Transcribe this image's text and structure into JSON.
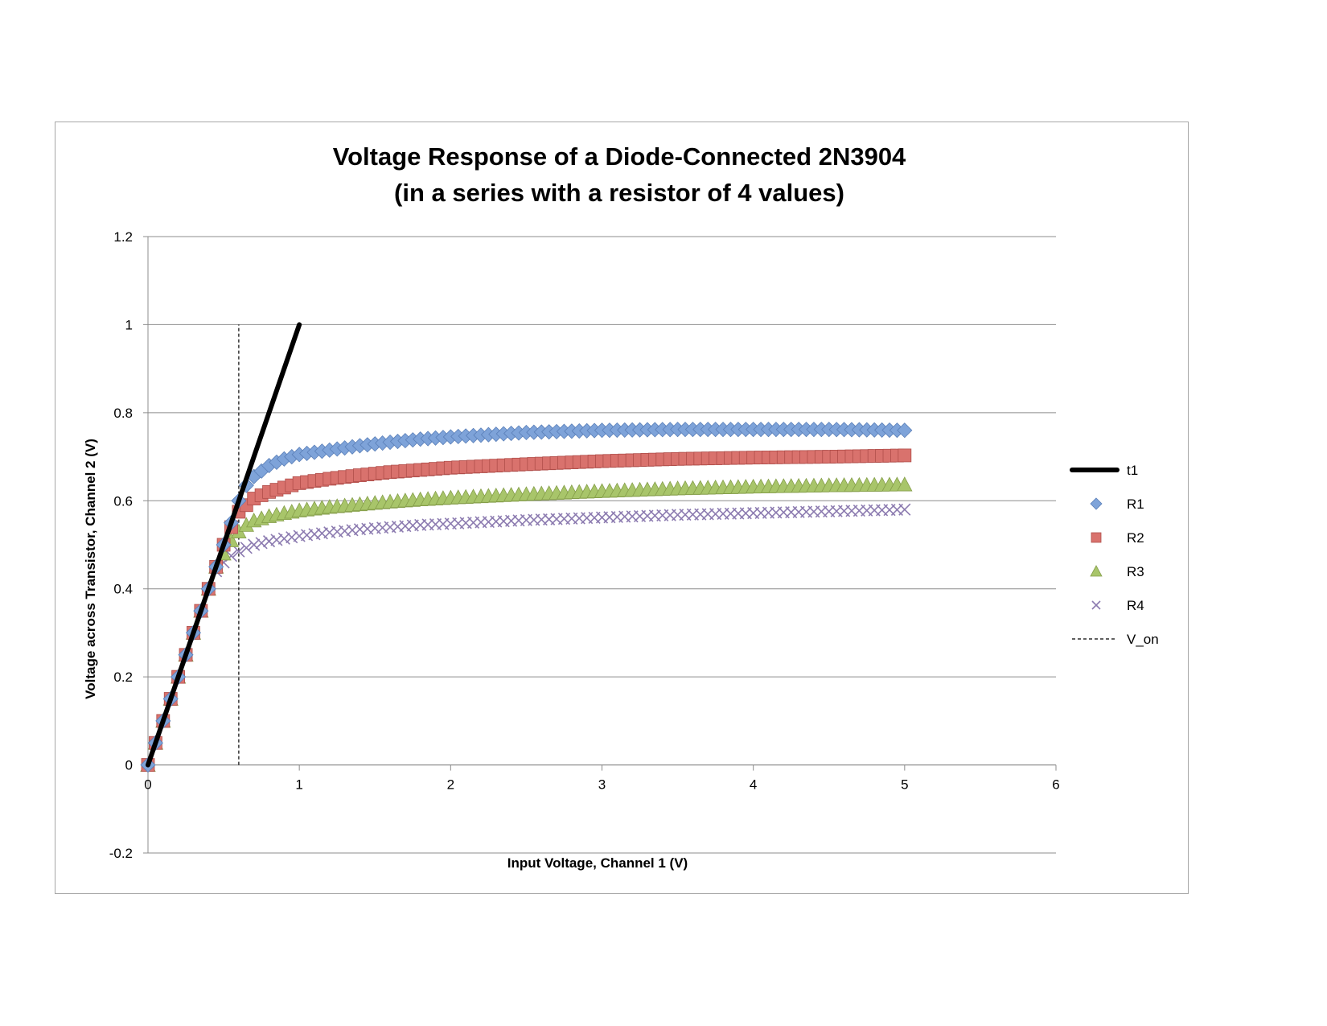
{
  "chart_data": {
    "type": "scatter",
    "title": "Voltage Response of a Diode-Connected 2N3904",
    "subtitle": "(in a series with a resistor of 4 values)",
    "xlabel": "Input Voltage, Channel 1 (V)",
    "ylabel": "Voltage across Transistor, Channel 2 (V)",
    "xlim": [
      0,
      6
    ],
    "ylim": [
      -0.2,
      1.2
    ],
    "x_ticks": [
      "0",
      "1",
      "2",
      "3",
      "4",
      "5",
      "6"
    ],
    "y_ticks": [
      "-0.2",
      "0",
      "0.2",
      "0.4",
      "0.6",
      "0.8",
      "1",
      "1.2"
    ],
    "grid": "horizontal",
    "legend_position": "right",
    "series": [
      {
        "name": "t1",
        "kind": "line",
        "color": "#000000",
        "x": [
          0,
          1
        ],
        "y": [
          0,
          1
        ]
      },
      {
        "name": "R1",
        "kind": "markers",
        "marker": "diamond",
        "color": "#7ea3d9",
        "x": [
          0,
          0.05,
          0.1,
          0.15,
          0.2,
          0.25,
          0.3,
          0.35,
          0.4,
          0.45,
          0.5,
          0.55,
          0.6,
          0.65,
          0.7,
          0.8,
          0.9,
          1.0,
          1.2,
          1.4,
          1.6,
          1.8,
          2.0,
          2.5,
          3.0,
          3.5,
          4.0,
          4.5,
          5.0
        ],
        "y": [
          0,
          0.05,
          0.1,
          0.15,
          0.2,
          0.25,
          0.3,
          0.35,
          0.4,
          0.45,
          0.5,
          0.55,
          0.6,
          0.635,
          0.655,
          0.68,
          0.695,
          0.705,
          0.715,
          0.725,
          0.733,
          0.74,
          0.745,
          0.755,
          0.76,
          0.762,
          0.762,
          0.762,
          0.76
        ]
      },
      {
        "name": "R2",
        "kind": "markers",
        "marker": "square",
        "color": "#d9726d",
        "x": [
          0,
          0.05,
          0.1,
          0.15,
          0.2,
          0.25,
          0.3,
          0.35,
          0.4,
          0.45,
          0.5,
          0.55,
          0.6,
          0.65,
          0.7,
          0.8,
          0.9,
          1.0,
          1.2,
          1.4,
          1.6,
          1.8,
          2.0,
          2.5,
          3.0,
          3.5,
          4.0,
          4.5,
          5.0
        ],
        "y": [
          0,
          0.05,
          0.1,
          0.15,
          0.2,
          0.25,
          0.3,
          0.35,
          0.4,
          0.45,
          0.5,
          0.54,
          0.575,
          0.59,
          0.605,
          0.62,
          0.63,
          0.64,
          0.65,
          0.658,
          0.665,
          0.67,
          0.675,
          0.683,
          0.69,
          0.695,
          0.698,
          0.7,
          0.703
        ]
      },
      {
        "name": "R3",
        "kind": "markers",
        "marker": "triangle",
        "color": "#a8c56a",
        "x": [
          0,
          0.05,
          0.1,
          0.15,
          0.2,
          0.25,
          0.3,
          0.35,
          0.4,
          0.45,
          0.5,
          0.55,
          0.6,
          0.65,
          0.7,
          0.8,
          0.9,
          1.0,
          1.2,
          1.4,
          1.6,
          1.8,
          2.0,
          2.5,
          3.0,
          3.5,
          4.0,
          4.5,
          5.0
        ],
        "y": [
          0,
          0.05,
          0.1,
          0.15,
          0.2,
          0.25,
          0.3,
          0.35,
          0.4,
          0.45,
          0.48,
          0.51,
          0.53,
          0.545,
          0.555,
          0.565,
          0.572,
          0.578,
          0.586,
          0.592,
          0.598,
          0.603,
          0.607,
          0.615,
          0.622,
          0.628,
          0.632,
          0.635,
          0.637
        ]
      },
      {
        "name": "R4",
        "kind": "markers",
        "marker": "x",
        "color": "#8c7bb0",
        "x": [
          0,
          0.05,
          0.1,
          0.15,
          0.2,
          0.25,
          0.3,
          0.35,
          0.4,
          0.45,
          0.5,
          0.55,
          0.6,
          0.65,
          0.7,
          0.8,
          0.9,
          1.0,
          1.2,
          1.4,
          1.6,
          1.8,
          2.0,
          2.5,
          3.0,
          3.5,
          4.0,
          4.5,
          5.0
        ],
        "y": [
          0,
          0.05,
          0.1,
          0.15,
          0.2,
          0.25,
          0.3,
          0.35,
          0.4,
          0.44,
          0.46,
          0.475,
          0.485,
          0.493,
          0.5,
          0.508,
          0.514,
          0.52,
          0.528,
          0.535,
          0.54,
          0.545,
          0.548,
          0.556,
          0.562,
          0.568,
          0.572,
          0.576,
          0.58
        ]
      },
      {
        "name": "V_on",
        "kind": "dashed",
        "color": "#000000",
        "x": [
          0.6,
          0.6
        ],
        "y": [
          0,
          1
        ]
      }
    ]
  }
}
